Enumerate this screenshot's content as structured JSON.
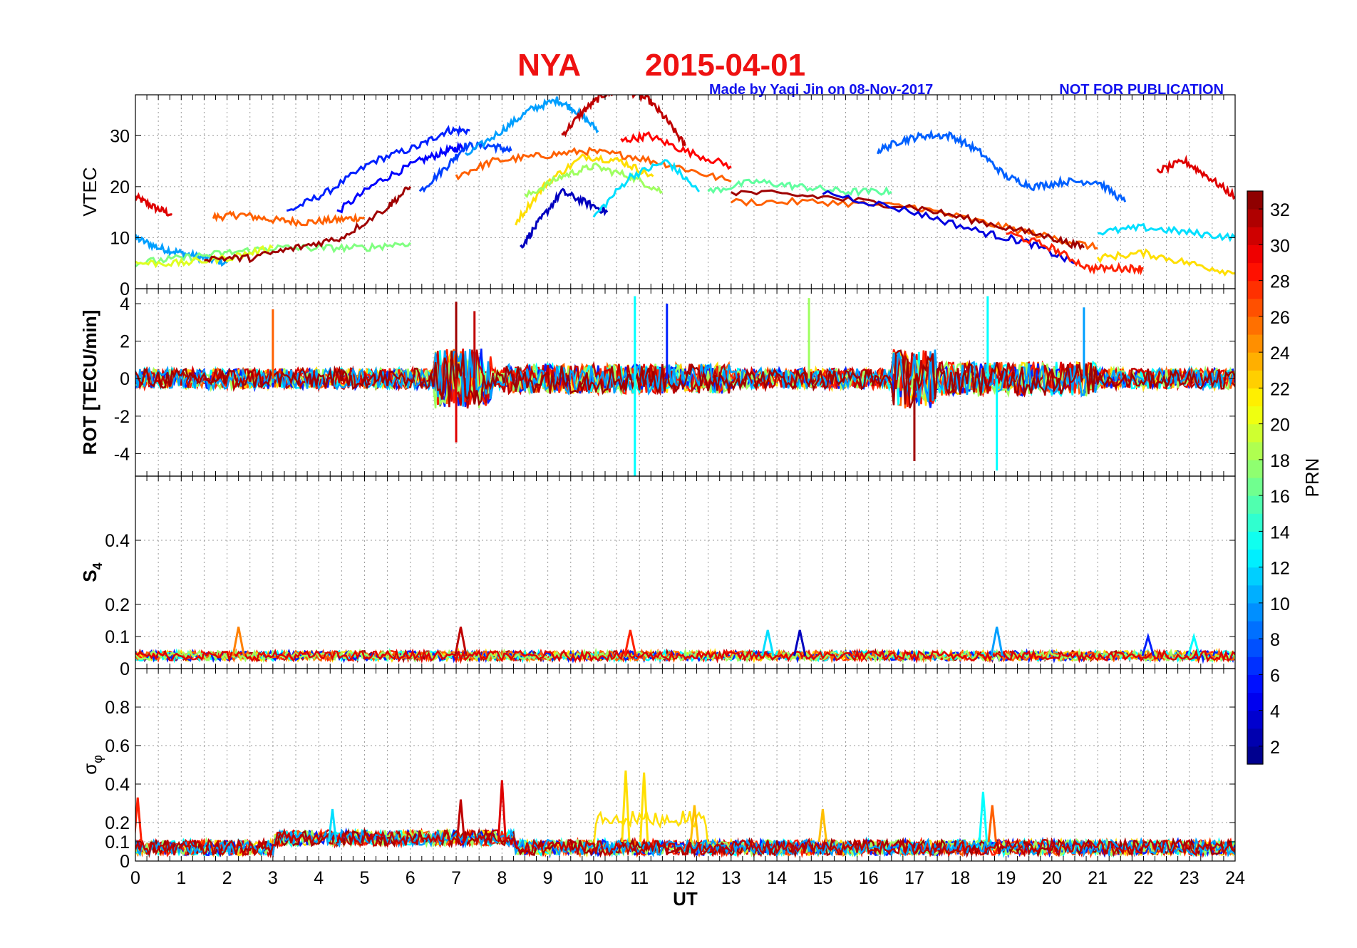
{
  "title": {
    "station": "NYA",
    "date": "2015-04-01",
    "color": "#ee1111"
  },
  "credit": {
    "made_by": "Made by Yaqi Jin on 08-Nov-2017",
    "notice": "NOT FOR PUBLICATION",
    "color": "#1111ee"
  },
  "chart_data": [
    {
      "type": "line",
      "panel": "VTEC",
      "ylabel": "VTEC",
      "xlabel": "",
      "xlim": [
        0,
        24
      ],
      "ylim": [
        0,
        38
      ],
      "yticks": [
        0,
        10,
        20,
        30
      ],
      "ytick_labels": [
        "0",
        "10",
        "20",
        "30"
      ],
      "grid": true,
      "series": [
        {
          "name": "PRN 30",
          "prn": 30,
          "x": [
            0,
            0.4,
            0.8
          ],
          "values": [
            18,
            16,
            14.5
          ]
        },
        {
          "name": "PRN 10",
          "prn": 10,
          "x": [
            0,
            0.5,
            1,
            1.5,
            2
          ],
          "values": [
            10,
            8,
            7,
            6,
            5
          ]
        },
        {
          "name": "PRN 26",
          "prn": 26,
          "x": [
            1.7,
            2.3,
            3,
            3.7,
            4.4,
            5
          ],
          "values": [
            14,
            14.5,
            13.5,
            13,
            13.5,
            14
          ]
        },
        {
          "name": "PRN 6",
          "prn": 6,
          "x": [
            3.3,
            4.2,
            5.2,
            6.2,
            6.8,
            7.3
          ],
          "values": [
            15,
            19,
            25,
            28,
            31,
            31
          ]
        },
        {
          "name": "PRN 5",
          "prn": 5,
          "x": [
            4.4,
            5.3,
            6.2,
            6.8,
            7.2
          ],
          "values": [
            15,
            21,
            25,
            27,
            28
          ]
        },
        {
          "name": "PRN 7",
          "prn": 7,
          "x": [
            6.2,
            6.8,
            7.2,
            7.8,
            8.2
          ],
          "values": [
            19,
            24,
            28,
            28,
            27
          ]
        },
        {
          "name": "PRN 10",
          "prn": 10,
          "x": [
            7.2,
            8,
            8.6,
            9.2,
            9.6,
            10.1
          ],
          "values": [
            26,
            31,
            35,
            37,
            35,
            31
          ]
        },
        {
          "name": "PRN 31",
          "prn": 31,
          "x": [
            9.3,
            9.8,
            10.2,
            10.7,
            11.2,
            11.6,
            12
          ],
          "values": [
            30,
            35,
            38,
            39,
            37,
            33,
            28
          ]
        },
        {
          "name": "PRN 26",
          "prn": 26,
          "x": [
            7,
            7.8,
            8.8,
            9.8,
            10.8,
            11.8,
            13
          ],
          "values": [
            22,
            25,
            26,
            27,
            26,
            24,
            21
          ]
        },
        {
          "name": "PRN 22",
          "prn": 22,
          "x": [
            8.3,
            9,
            9.8,
            10.6,
            11.3
          ],
          "values": [
            13,
            21,
            26,
            25,
            22
          ]
        },
        {
          "name": "PRN 18",
          "prn": 18,
          "x": [
            8.5,
            9.3,
            10,
            10.8,
            11.5
          ],
          "values": [
            18,
            22,
            24,
            22,
            19
          ]
        },
        {
          "name": "PRN 3",
          "prn": 3,
          "x": [
            8.4,
            8.8,
            9.3,
            9.8,
            10.3
          ],
          "values": [
            8,
            13,
            19,
            17,
            15
          ]
        },
        {
          "name": "PRN 12",
          "prn": 12,
          "x": [
            10,
            10.8,
            11.6,
            12.3
          ],
          "values": [
            14,
            22,
            25,
            19
          ]
        },
        {
          "name": "PRN 29",
          "prn": 29,
          "x": [
            10.6,
            11.2,
            12,
            13
          ],
          "values": [
            29,
            30,
            27,
            24
          ]
        },
        {
          "name": "PRN 16",
          "prn": 16,
          "x": [
            12.5,
            13.5,
            14.5,
            15.5,
            16.5
          ],
          "values": [
            19,
            21,
            20,
            19,
            19
          ]
        },
        {
          "name": "PRN 8",
          "prn": 8,
          "x": [
            16.2,
            16.7,
            17.2,
            17.8,
            18.4
          ],
          "values": [
            27,
            29,
            30,
            30,
            27
          ]
        },
        {
          "name": "PRN 8",
          "prn": 8,
          "x": [
            18.4,
            19,
            19.6,
            20.3,
            21,
            21.6
          ],
          "values": [
            27,
            22,
            20,
            21,
            21,
            17
          ]
        },
        {
          "name": "PRN 30",
          "prn": 30,
          "x": [
            22.3,
            22.9,
            23.4,
            24
          ],
          "values": [
            23,
            25,
            22,
            18
          ]
        },
        {
          "name": "PRN 26",
          "prn": 26,
          "x": [
            13,
            15,
            17,
            18.5,
            20,
            21
          ],
          "values": [
            17,
            17,
            16,
            13,
            10,
            8
          ]
        },
        {
          "name": "PRN 32",
          "prn": 32,
          "x": [
            13,
            15,
            17,
            18.5,
            20,
            20.7
          ],
          "values": [
            19,
            18,
            16,
            13,
            10,
            8
          ]
        },
        {
          "name": "PRN 4",
          "prn": 4,
          "x": [
            15,
            17,
            18.5,
            19.5,
            20.5
          ],
          "values": [
            19,
            15,
            11,
            9,
            5
          ]
        },
        {
          "name": "PRN 28",
          "prn": 28,
          "x": [
            19,
            20,
            20.8,
            21.5,
            22
          ],
          "values": [
            11,
            8,
            4,
            4,
            4
          ]
        },
        {
          "name": "PRN 12",
          "prn": 12,
          "x": [
            21,
            22,
            23,
            24
          ],
          "values": [
            11,
            12,
            11,
            10
          ]
        },
        {
          "name": "PRN 22",
          "prn": 22,
          "x": [
            21,
            22,
            23,
            24
          ],
          "values": [
            6,
            7,
            5,
            3
          ]
        },
        {
          "name": "PRN 17",
          "prn": 17,
          "x": [
            0,
            1,
            2,
            3,
            4,
            5,
            6
          ],
          "values": [
            5,
            6,
            7,
            8,
            8,
            8,
            9
          ]
        },
        {
          "name": "PRN 20",
          "prn": 20,
          "x": [
            0,
            1,
            2,
            3
          ],
          "values": [
            5,
            5,
            6,
            8
          ]
        },
        {
          "name": "PRN 32",
          "prn": 32,
          "x": [
            1.5,
            2.5,
            3.5,
            4.5,
            5.5,
            6
          ],
          "values": [
            6,
            6,
            8,
            10,
            16,
            20
          ]
        }
      ]
    },
    {
      "type": "line",
      "panel": "ROT",
      "ylabel": "ROT [TECU/min]",
      "xlabel": "",
      "xlim": [
        0,
        24
      ],
      "ylim": [
        -5.2,
        4.8
      ],
      "yticks": [
        -4,
        -2,
        0,
        2,
        4
      ],
      "ytick_labels": [
        "-4",
        "-2",
        "0",
        "2",
        "4"
      ],
      "grid": true,
      "description": "Per-PRN rate of TEC traces, noisy around 0 TECU/min",
      "spikes": [
        {
          "x": 3.0,
          "y": 3.7,
          "prn": 26
        },
        {
          "x": 7.0,
          "y": 4.1,
          "prn": 32
        },
        {
          "x": 7.0,
          "y": -3.4,
          "prn": 30
        },
        {
          "x": 7.4,
          "y": 3.6,
          "prn": 31
        },
        {
          "x": 10.9,
          "y": -5.2,
          "prn": 13
        },
        {
          "x": 10.9,
          "y": 4.4,
          "prn": 13
        },
        {
          "x": 11.6,
          "y": 4.0,
          "prn": 6
        },
        {
          "x": 14.7,
          "y": 4.3,
          "prn": 18
        },
        {
          "x": 17.0,
          "y": -4.4,
          "prn": 32
        },
        {
          "x": 18.6,
          "y": 4.4,
          "prn": 13
        },
        {
          "x": 18.8,
          "y": -4.9,
          "prn": 13
        },
        {
          "x": 20.7,
          "y": 3.8,
          "prn": 10
        }
      ]
    },
    {
      "type": "line",
      "panel": "S4",
      "ylabel": "S4",
      "xlabel": "",
      "xlim": [
        0,
        24
      ],
      "ylim": [
        0,
        0.6
      ],
      "yticks": [
        0,
        0.1,
        0.2,
        0.4
      ],
      "ytick_labels": [
        "0",
        "0.1",
        "0.2",
        "0.4"
      ],
      "grid": true,
      "peaks": [
        {
          "x": 2.25,
          "y": 0.13,
          "prn": 25
        },
        {
          "x": 7.1,
          "y": 0.13,
          "prn": 31
        },
        {
          "x": 10.8,
          "y": 0.12,
          "prn": 28
        },
        {
          "x": 13.8,
          "y": 0.12,
          "prn": 12
        },
        {
          "x": 14.5,
          "y": 0.12,
          "prn": 3
        },
        {
          "x": 18.8,
          "y": 0.13,
          "prn": 10
        },
        {
          "x": 22.1,
          "y": 0.1,
          "prn": 6
        },
        {
          "x": 23.1,
          "y": 0.1,
          "prn": 13
        }
      ]
    },
    {
      "type": "line",
      "panel": "sigma_phi",
      "ylabel": "σφ",
      "xlabel": "UT",
      "xlim": [
        0,
        24
      ],
      "ylim": [
        0,
        1.0
      ],
      "yticks": [
        0,
        0.1,
        0.2,
        0.4,
        0.6,
        0.8
      ],
      "ytick_labels": [
        "0",
        "0.1",
        "0.2",
        "0.4",
        "0.6",
        "0.8"
      ],
      "xticks": [
        0,
        1,
        2,
        3,
        4,
        5,
        6,
        7,
        8,
        9,
        10,
        11,
        12,
        13,
        14,
        15,
        16,
        17,
        18,
        19,
        20,
        21,
        22,
        23,
        24
      ],
      "xtick_labels": [
        "0",
        "1",
        "2",
        "3",
        "4",
        "5",
        "6",
        "7",
        "8",
        "9",
        "10",
        "11",
        "12",
        "13",
        "14",
        "15",
        "16",
        "17",
        "18",
        "19",
        "20",
        "21",
        "22",
        "23",
        "24"
      ],
      "grid": true,
      "peaks": [
        {
          "x": 0.05,
          "y": 0.33,
          "prn": 28
        },
        {
          "x": 4.3,
          "y": 0.27,
          "prn": 12
        },
        {
          "x": 7.1,
          "y": 0.32,
          "prn": 31
        },
        {
          "x": 8.0,
          "y": 0.42,
          "prn": 30
        },
        {
          "x": 10.7,
          "y": 0.47,
          "prn": 22
        },
        {
          "x": 11.1,
          "y": 0.46,
          "prn": 22
        },
        {
          "x": 12.2,
          "y": 0.29,
          "prn": 23
        },
        {
          "x": 15.0,
          "y": 0.27,
          "prn": 23
        },
        {
          "x": 18.5,
          "y": 0.36,
          "prn": 13
        },
        {
          "x": 18.7,
          "y": 0.29,
          "prn": 26
        }
      ]
    }
  ],
  "colorbar": {
    "label": "PRN",
    "min": 1,
    "max": 33,
    "ticks": [
      2,
      4,
      6,
      8,
      10,
      12,
      14,
      16,
      18,
      20,
      22,
      24,
      26,
      28,
      30,
      32
    ],
    "tick_labels": [
      "2",
      "4",
      "6",
      "8",
      "10",
      "12",
      "14",
      "16",
      "18",
      "20",
      "22",
      "24",
      "26",
      "28",
      "30",
      "32"
    ],
    "colormap": "jet"
  }
}
